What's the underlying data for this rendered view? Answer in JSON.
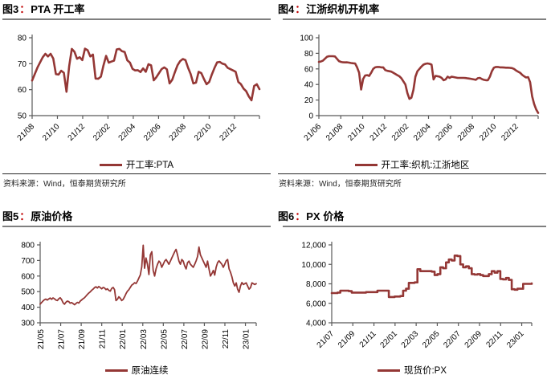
{
  "page": {
    "background": "#ffffff",
    "line_color": "#943735",
    "title_colon_color": "#c00000",
    "title_rule_color": "#7f7f7f",
    "source_rule_color": "#262626",
    "axis_color": "#595959"
  },
  "chart_data": [
    {
      "id": "pta-operating-rate",
      "type": "line",
      "fig_label": "图3",
      "colon": "：",
      "title": "PTA 开工率",
      "legend": "开工率:PTA",
      "source": "资料来源：Wind，恒泰期货研究所",
      "ylim": [
        50,
        80
      ],
      "yticks": [
        50,
        60,
        70,
        80
      ],
      "ytick_labels": [
        "50",
        "60",
        "70",
        "80"
      ],
      "xticks": [
        "21/08",
        "21/10",
        "21/12",
        "22/02",
        "22/04",
        "22/06",
        "22/08",
        "22/10",
        "22/12"
      ],
      "xtick_style": "diagonal",
      "xtick_end_frac": 0.89,
      "grid": false,
      "legend_position": "bottom",
      "values": [
        63.5,
        66,
        68.5,
        70.5,
        72.5,
        73.8,
        72.8,
        73.8,
        72,
        66,
        65.8,
        67.3,
        66.5,
        59.2,
        69,
        75.7,
        74.6,
        71.9,
        72.5,
        71.4,
        75.8,
        75.2,
        72.8,
        73.5,
        64.3,
        64.2,
        65,
        69.3,
        73,
        70.4,
        70.8,
        71.2,
        75.5,
        75.7,
        74.8,
        74.5,
        71.3,
        70.4,
        68,
        67.4,
        67.5,
        66.8,
        68.2,
        66.9,
        69.8,
        69.4,
        63.6,
        64.8,
        66.4,
        67.9,
        68.6,
        67.8,
        62.4,
        63.8,
        66.7,
        69.4,
        71,
        71.8,
        71.4,
        68.4,
        66,
        62.4,
        62.7,
        66.9,
        66.4,
        64.1,
        62.1,
        63,
        65.9,
        68.4,
        70.5,
        70.7,
        70,
        69.7,
        68.4,
        67.9,
        67.4,
        66.9,
        63,
        62.1,
        60.4,
        59.4,
        57.4,
        55.9,
        61.4,
        62.1,
        60.2
      ]
    },
    {
      "id": "jiangzhe-loom-operating-rate",
      "type": "line",
      "fig_label": "图4",
      "colon": "：",
      "title": "江浙织机开机率",
      "legend": "开工率:织机:江浙地区",
      "source": "资料来源：Wind，恒泰期货研究所",
      "ylim": [
        0,
        100
      ],
      "yticks": [
        0,
        20,
        40,
        60,
        80,
        100
      ],
      "ytick_labels": [
        "0",
        "20",
        "40",
        "60",
        "80",
        "100"
      ],
      "xticks": [
        "21/06",
        "21/08",
        "21/10",
        "21/12",
        "22/02",
        "22/04",
        "22/06",
        "22/08",
        "22/10",
        "22/12"
      ],
      "xtick_style": "diagonal",
      "xtick_end_frac": 0.9,
      "grid": false,
      "legend_position": "bottom",
      "values": [
        69,
        69.5,
        70.5,
        73,
        75.5,
        76.3,
        76.3,
        76.3,
        76,
        73,
        70,
        69,
        68.5,
        68.3,
        68.5,
        68,
        67.5,
        67.2,
        67,
        62,
        55,
        33.5,
        47,
        51.5,
        52,
        51,
        55,
        60,
        62,
        62.5,
        62.5,
        62,
        62,
        58.5,
        57.5,
        57,
        56.5,
        55,
        53.5,
        52,
        50.5,
        48,
        44,
        40,
        29,
        21.5,
        23,
        33,
        50,
        57,
        60,
        63,
        65.5,
        66.5,
        67,
        66.5,
        65.5,
        46.5,
        51,
        50.5,
        50,
        48.5,
        45.5,
        46.5,
        50,
        48.5,
        50,
        49.5,
        49,
        48.5,
        48.5,
        48.5,
        48.5,
        48.2,
        47.8,
        47.5,
        47,
        46.5,
        46,
        48,
        48.5,
        47,
        46,
        45.5,
        45.5,
        50,
        57,
        61.5,
        62.5,
        62.5,
        62,
        62,
        61.8,
        61.5,
        61.5,
        61.3,
        61,
        60,
        58,
        56.5,
        55,
        52.5,
        50.5,
        49,
        49.5,
        43,
        25,
        15,
        8,
        3.5
      ]
    },
    {
      "id": "crude-oil-price",
      "type": "line",
      "fig_label": "图5",
      "colon": "：",
      "title": "原油价格",
      "legend": "原油连续",
      "ylim": [
        300,
        800
      ],
      "yticks": [
        300,
        400,
        500,
        600,
        700,
        800
      ],
      "ytick_labels": [
        "300",
        "400",
        "500",
        "600",
        "700",
        "800"
      ],
      "xticks": [
        "21/05",
        "21/07",
        "21/09",
        "21/11",
        "22/01",
        "22/03",
        "22/05",
        "22/07",
        "22/09",
        "22/11",
        "23/01"
      ],
      "xtick_style": "vertical",
      "xtick_end_frac": 0.95,
      "grid": false,
      "legend_position": "bottom",
      "values": [
        420,
        430,
        440,
        448,
        452,
        446,
        453,
        459,
        451,
        460,
        454,
        446,
        443,
        454,
        461,
        449,
        429,
        419,
        432,
        439,
        436,
        426,
        430,
        423,
        416,
        423,
        431,
        427,
        439,
        447,
        454,
        461,
        471,
        482,
        491,
        499,
        508,
        516,
        526,
        531,
        523,
        533,
        526,
        518,
        527,
        523,
        513,
        518,
        508,
        503,
        521,
        527,
        513,
        443,
        451,
        467,
        457,
        443,
        450,
        467,
        487,
        503,
        513,
        527,
        542,
        548,
        557,
        552,
        567,
        587,
        607,
        660,
        798,
        650,
        716,
        676,
        610,
        736,
        756,
        636,
        600,
        646,
        676,
        696,
        686,
        656,
        676,
        696,
        706,
        691,
        676,
        696,
        716,
        736,
        756,
        771,
        736,
        696,
        676,
        706,
        696,
        666,
        646,
        686,
        696,
        676,
        666,
        656,
        676,
        698,
        726,
        786,
        736,
        716,
        696,
        676,
        656,
        696,
        646,
        600,
        616,
        636,
        606,
        656,
        686,
        698,
        686,
        676,
        656,
        676,
        698,
        706,
        646,
        626,
        596,
        556,
        536,
        556,
        516,
        496,
        536,
        558,
        546,
        551,
        556,
        536,
        516,
        526,
        556,
        551,
        546,
        551
      ]
    },
    {
      "id": "px-price",
      "type": "line",
      "step": true,
      "fig_label": "图6",
      "colon": "：",
      "title": "PX 价格",
      "legend": "现货价:PX",
      "ylim": [
        4000,
        12000
      ],
      "yticks": [
        4000,
        6000,
        8000,
        10000,
        12000
      ],
      "ytick_labels": [
        "4,000",
        "6,000",
        "8,000",
        "10,000",
        "12,000"
      ],
      "xticks": [
        "21/07",
        "21/09",
        "21/11",
        "22/01",
        "22/03",
        "22/05",
        "22/07",
        "22/09",
        "22/11",
        "23/01"
      ],
      "xtick_style": "diagonal",
      "xtick_end_frac": 0.95,
      "grid": false,
      "legend_position": "bottom",
      "values": [
        7050,
        7050,
        7100,
        7300,
        7300,
        7300,
        7250,
        7100,
        7100,
        7100,
        7100,
        7100,
        7150,
        7150,
        7150,
        7150,
        7300,
        7300,
        7300,
        7300,
        6650,
        6650,
        6700,
        6700,
        6750,
        7300,
        7500,
        8100,
        8100,
        8150,
        9500,
        9300,
        9300,
        9300,
        9300,
        9250,
        8900,
        9000,
        9700,
        9600,
        10200,
        10500,
        10400,
        10900,
        10850,
        10000,
        9700,
        9800,
        9600,
        9000,
        8950,
        9000,
        8900,
        8800,
        8800,
        9000,
        9300,
        9150,
        9300,
        8500,
        8450,
        8600,
        8400,
        7450,
        7400,
        7500,
        7500,
        8000,
        8000,
        8000,
        8050
      ]
    }
  ]
}
